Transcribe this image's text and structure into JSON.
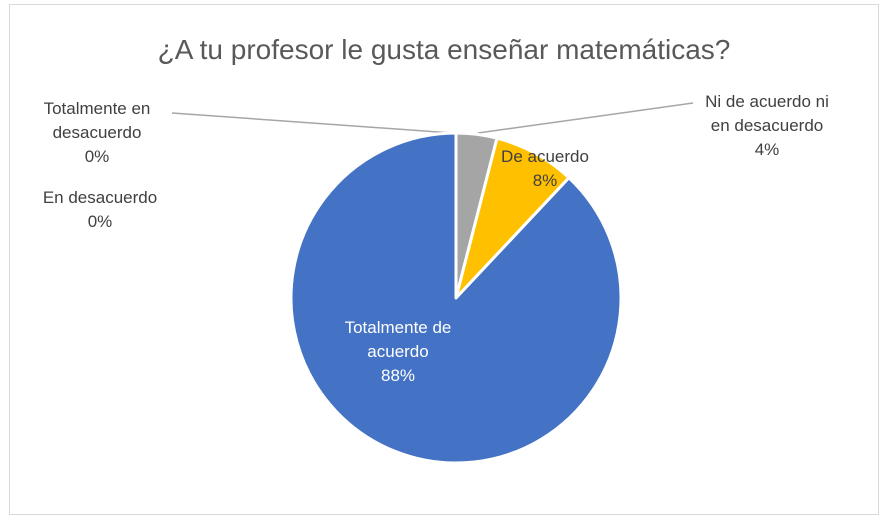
{
  "chart_data": {
    "type": "pie",
    "title": "¿A tu profesor le gusta enseñar matemáticas?",
    "categories": [
      "Totalmente en desacuerdo",
      "En desacuerdo",
      "Ni de acuerdo ni en desacuerdo",
      "De acuerdo",
      "Totalmente de acuerdo"
    ],
    "values": [
      0,
      0,
      4,
      8,
      88
    ],
    "value_labels": [
      "0%",
      "0%",
      "4%",
      "8%",
      "88%"
    ],
    "colors": [
      "#4472c4",
      "#ed7d31",
      "#a5a5a5",
      "#ffc000",
      "#4472c4"
    ]
  }
}
